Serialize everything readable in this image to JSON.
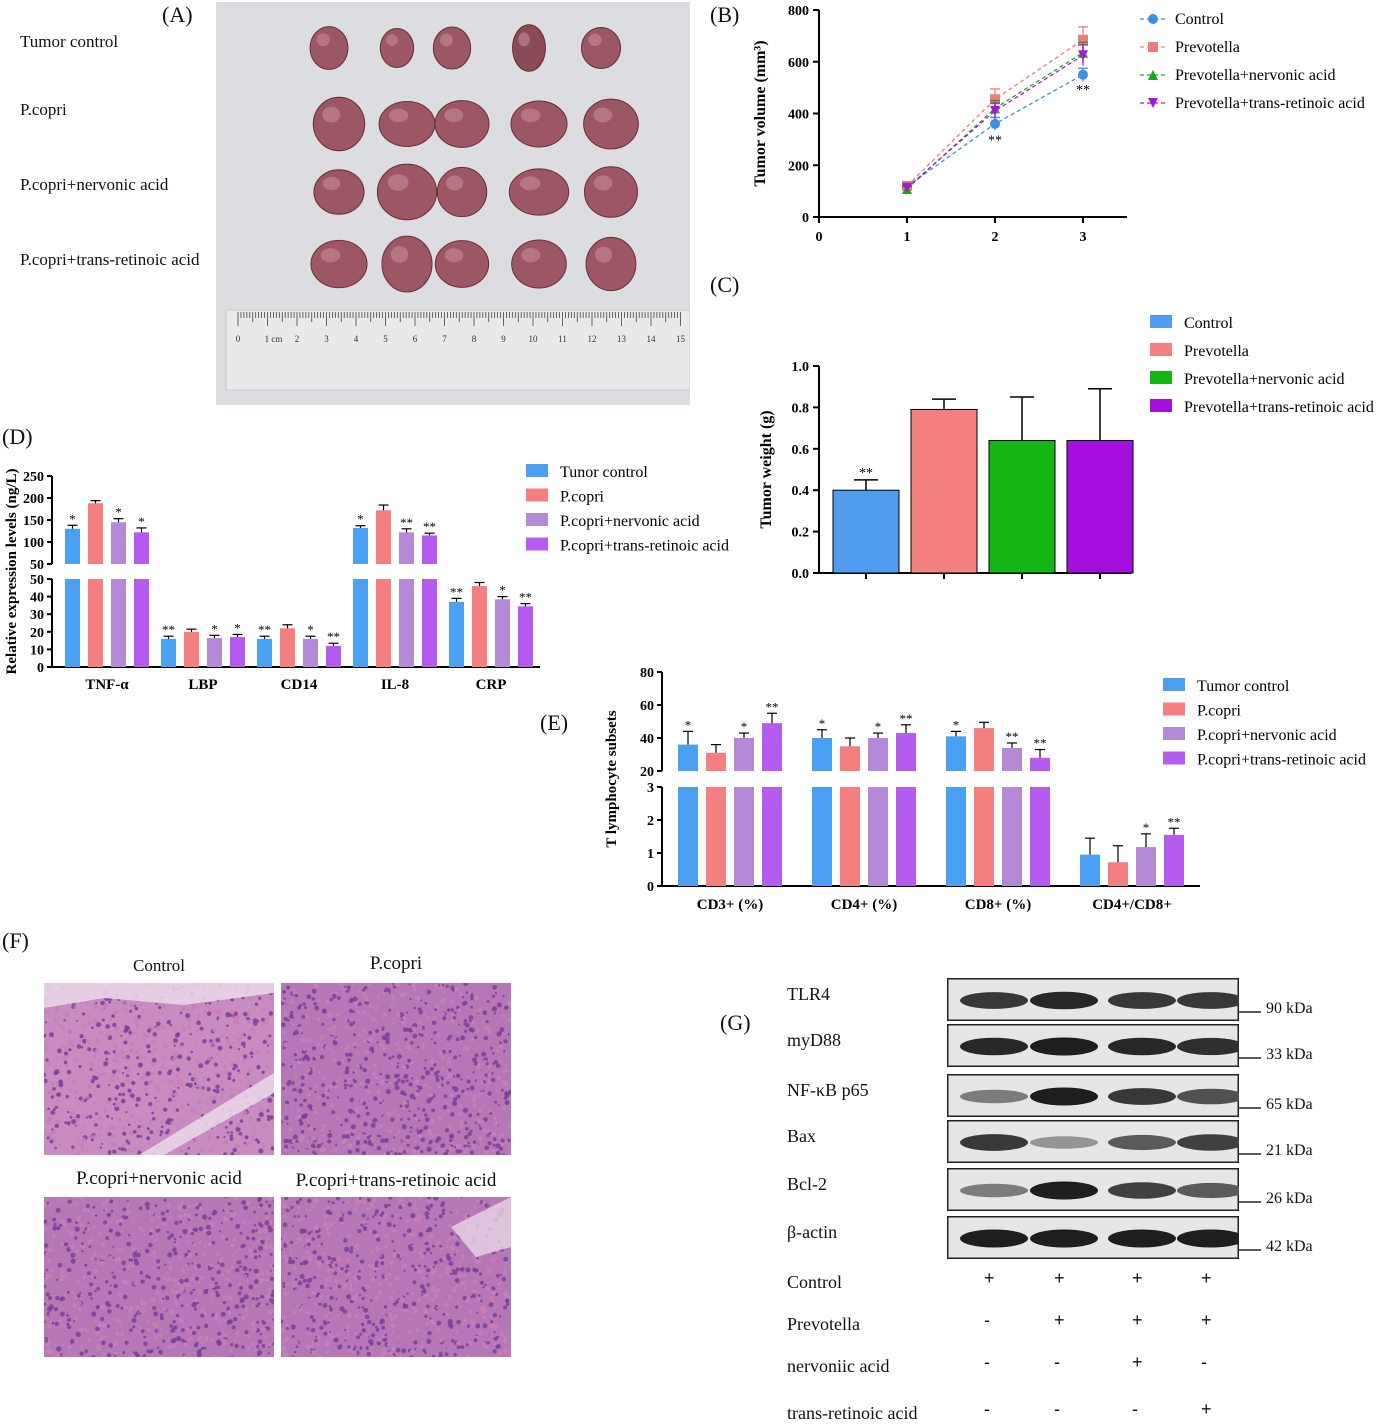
{
  "panels": {
    "A": {
      "label": "(A)",
      "rows": [
        "Tumor control",
        "P.copri",
        "P.copri+nervonic acid",
        "P.copri+trans-retinoic acid"
      ],
      "ruler_ticks": [
        "0",
        "1 cm",
        "2",
        "3",
        "4",
        "5",
        "6",
        "7",
        "8",
        "9",
        "10",
        "11",
        "12",
        "13",
        "14",
        "15"
      ]
    },
    "F": {
      "label": "(F)",
      "titles": [
        "Control",
        "P.copri",
        "P.copri+nervonic acid",
        "P.copri+trans-retinoic acid"
      ],
      "colors": {
        "pink": "#c97fb8",
        "purple": "#7a3f9a",
        "pale": "#e9d6e6"
      }
    },
    "G": {
      "label": "(G)",
      "proteins": [
        "TLR4",
        "myD88",
        "NF-κB p65",
        "Bax",
        "Bcl-2",
        "β-actin"
      ],
      "sizes": [
        "90 kDa",
        "33 kDa",
        "65 kDa",
        "21 kDa",
        "26 kDa",
        "42 kDa"
      ],
      "band_intensity": [
        [
          0.85,
          0.95,
          0.85,
          0.85
        ],
        [
          0.95,
          1.0,
          0.95,
          0.9
        ],
        [
          0.45,
          1.0,
          0.85,
          0.7
        ],
        [
          0.85,
          0.3,
          0.65,
          0.8
        ],
        [
          0.45,
          1.0,
          0.8,
          0.65
        ],
        [
          1.0,
          1.0,
          1.0,
          1.0
        ]
      ],
      "treatments": [
        {
          "name": "Control",
          "signs": [
            "+",
            "+",
            "+",
            "+"
          ]
        },
        {
          "name": "Prevotella",
          "signs": [
            "-",
            "+",
            "+",
            "+"
          ]
        },
        {
          "name": "nervoniic acid",
          "signs": [
            "-",
            "-",
            "+",
            "-"
          ]
        },
        {
          "name": "trans-retinoic acid",
          "signs": [
            "-",
            "-",
            "-",
            "+"
          ]
        }
      ]
    }
  },
  "chart_data": [
    {
      "id": "B",
      "panel_label": "(B)",
      "type": "line",
      "ylabel": "Tumor volume (mm³)",
      "x": [
        1,
        2,
        3
      ],
      "xlim": [
        0,
        3.5
      ],
      "ylim": [
        0,
        800
      ],
      "xticks": [
        0,
        1,
        2,
        3
      ],
      "yticks": [
        0,
        200,
        400,
        600,
        800
      ],
      "legend_position": "right",
      "series": [
        {
          "name": "Control",
          "values": [
            118,
            360,
            550
          ],
          "err": [
            8,
            25,
            25
          ],
          "color": "#3c8ee8",
          "marker": "circle"
        },
        {
          "name": "Prevotella",
          "values": [
            120,
            455,
            685
          ],
          "err": [
            8,
            40,
            50
          ],
          "color": "#ef7c7c",
          "marker": "square"
        },
        {
          "name": "Prevotella+nervonic acid",
          "values": [
            108,
            420,
            635
          ],
          "err": [
            8,
            30,
            40
          ],
          "color": "#1aa81a",
          "marker": "triangle-up"
        },
        {
          "name": "Prevotella+trans-retinoic acid",
          "values": [
            113,
            410,
            625
          ],
          "err": [
            8,
            30,
            40
          ],
          "color": "#a51ad0",
          "marker": "triangle-down"
        }
      ],
      "annotations": [
        {
          "x": 2,
          "y": 300,
          "text": "**"
        },
        {
          "x": 3,
          "y": 495,
          "text": "**"
        }
      ]
    },
    {
      "id": "C",
      "panel_label": "(C)",
      "type": "bar",
      "ylabel": "Tumor weight (g)",
      "categories": [
        "Control",
        "Prevotella",
        "Prevotella+nervonic acid",
        "Prevotella+trans-retinoic acid"
      ],
      "values": [
        0.4,
        0.79,
        0.64,
        0.64
      ],
      "err": [
        0.05,
        0.05,
        0.21,
        0.25
      ],
      "colors": [
        "#4f9cf0",
        "#f58080",
        "#13b613",
        "#a40fe0"
      ],
      "ylim": [
        0,
        1.0
      ],
      "yticks": [
        0.0,
        0.2,
        0.4,
        0.6,
        0.8,
        1.0
      ],
      "significance": [
        "**",
        "",
        "",
        ""
      ],
      "legend_position": "top-right"
    },
    {
      "id": "D",
      "panel_label": "(D)",
      "type": "bar",
      "ylabel": "Relative expression levels (ng/L)",
      "categories": [
        "TNF-α",
        "LBP",
        "CD14",
        "IL-8",
        "CRP"
      ],
      "axis_break": {
        "lower": [
          0,
          50
        ],
        "upper": [
          50,
          250
        ]
      },
      "yticks_lower": [
        0,
        10,
        20,
        30,
        40,
        50
      ],
      "yticks_upper": [
        50,
        100,
        150,
        200,
        250
      ],
      "legend_position": "top-right",
      "series": [
        {
          "name": "Tunor control",
          "color": "#4aa0f2",
          "values": [
            130,
            16,
            16,
            132,
            37
          ],
          "err": [
            8,
            1.5,
            1.5,
            5,
            2
          ],
          "sig": [
            "*",
            "**",
            "**",
            "*",
            "**"
          ]
        },
        {
          "name": "P.copri",
          "color": "#f57e7e",
          "values": [
            188,
            20,
            22,
            172,
            46
          ],
          "err": [
            6,
            1.5,
            2,
            12,
            2
          ],
          "sig": [
            "",
            "",
            "",
            "",
            ""
          ]
        },
        {
          "name": "P.copri+nervonic acid",
          "color": "#b48ad8",
          "values": [
            145,
            16.5,
            16,
            122,
            38.5
          ],
          "err": [
            8,
            1.5,
            1.5,
            8,
            1.5
          ],
          "sig": [
            "*",
            "*",
            "*",
            "**",
            "*"
          ]
        },
        {
          "name": "P.copri+trans-retinoic acid",
          "color": "#b65bf0",
          "values": [
            122,
            17,
            12,
            115,
            34.5
          ],
          "err": [
            10,
            1.5,
            1.5,
            5,
            1.5
          ],
          "sig": [
            "*",
            "*",
            "**",
            "**",
            "**"
          ]
        }
      ]
    },
    {
      "id": "E",
      "panel_label": "(E)",
      "type": "bar",
      "ylabel": "T lymphocyte subsets",
      "categories": [
        "CD3+ (%)",
        "CD4+  (%)",
        "CD8+  (%)",
        "CD4+/CD8+"
      ],
      "axis_break": {
        "lower": [
          0,
          3
        ],
        "upper": [
          20,
          80
        ]
      },
      "yticks_lower": [
        0,
        1,
        2,
        3
      ],
      "yticks_upper": [
        20,
        40,
        60,
        80
      ],
      "legend_position": "top-right",
      "series": [
        {
          "name": "Tumor control",
          "color": "#4aa0f2",
          "values": [
            36,
            40,
            41,
            0.95
          ],
          "err": [
            8,
            5,
            3,
            0.5
          ],
          "sig": [
            "*",
            "*",
            "*",
            ""
          ]
        },
        {
          "name": "P.copri",
          "color": "#f57e7e",
          "values": [
            31,
            35,
            46,
            0.72
          ],
          "err": [
            5,
            5,
            3.5,
            0.5
          ],
          "sig": [
            "",
            "",
            "",
            ""
          ]
        },
        {
          "name": "P.copri+nervonic acid",
          "color": "#b48ad8",
          "values": [
            40,
            40,
            34,
            1.18
          ],
          "err": [
            3,
            3,
            3,
            0.4
          ],
          "sig": [
            "*",
            "*",
            "**",
            "*"
          ]
        },
        {
          "name": "P.copri+trans-retinoic acid",
          "color": "#b65bf0",
          "values": [
            49,
            43,
            28,
            1.55
          ],
          "err": [
            6,
            5,
            5,
            0.2
          ],
          "sig": [
            "**",
            "**",
            "**",
            "**"
          ]
        }
      ]
    }
  ]
}
